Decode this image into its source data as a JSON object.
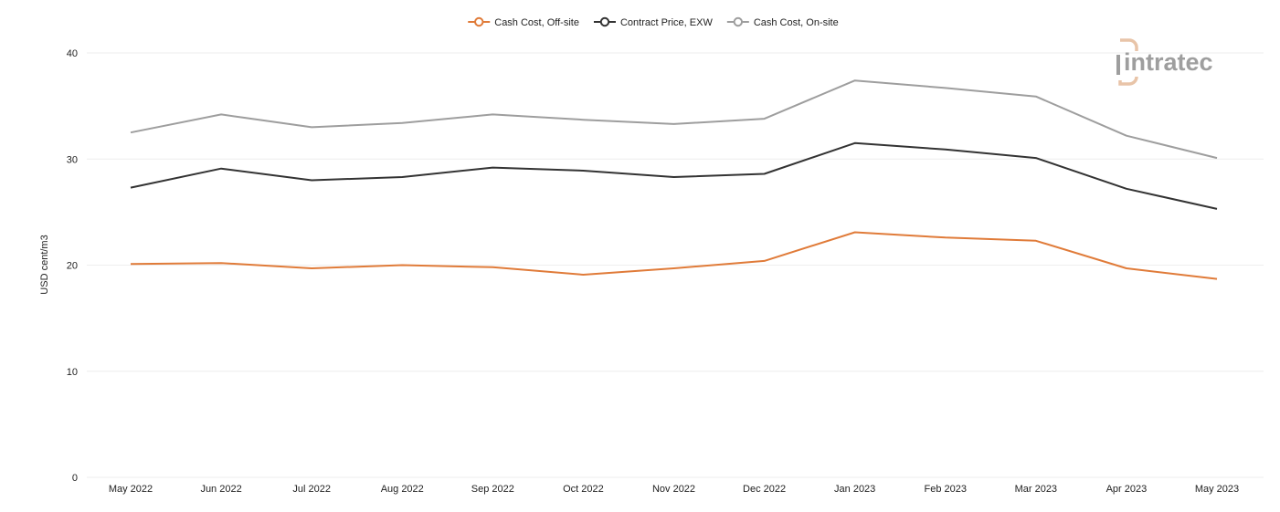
{
  "chart_data": {
    "type": "line",
    "title": "",
    "xlabel": "",
    "ylabel": "USD cent/m3",
    "ylim": [
      0,
      40
    ],
    "y_ticks": [
      0,
      10,
      20,
      30,
      40
    ],
    "grid": true,
    "legend_position": "top-center",
    "categories": [
      "May 2022",
      "Jun 2022",
      "Jul 2022",
      "Aug 2022",
      "Sep 2022",
      "Oct 2022",
      "Nov 2022",
      "Dec 2022",
      "Jan 2023",
      "Feb 2023",
      "Mar 2023",
      "Apr 2023",
      "May 2023"
    ],
    "series": [
      {
        "name": "Cash Cost, Off-site",
        "color": "#e07b39",
        "values": [
          20.1,
          20.2,
          19.7,
          20.0,
          19.8,
          19.1,
          19.7,
          20.4,
          23.1,
          22.6,
          22.3,
          19.7,
          18.7
        ]
      },
      {
        "name": "Contract Price, EXW",
        "color": "#333333",
        "values": [
          27.3,
          29.1,
          28.0,
          28.3,
          29.2,
          28.9,
          28.3,
          28.6,
          31.5,
          30.9,
          30.1,
          27.2,
          25.3
        ]
      },
      {
        "name": "Cash Cost, On-site",
        "color": "#9e9e9e",
        "values": [
          32.5,
          34.2,
          33.0,
          33.4,
          34.2,
          33.7,
          33.3,
          33.8,
          37.4,
          36.7,
          35.9,
          32.2,
          30.1
        ]
      }
    ]
  },
  "watermark": {
    "text": "intratec",
    "logo_color": "#e8c4a8",
    "text_color": "#9e9e9e"
  }
}
